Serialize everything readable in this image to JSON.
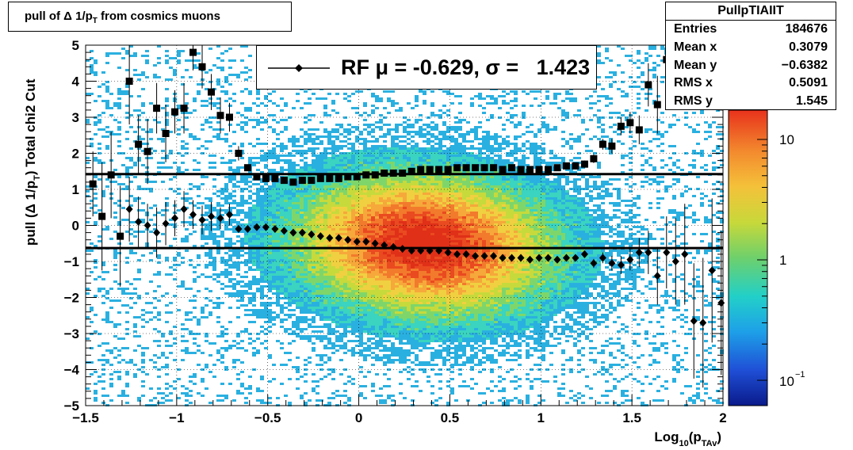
{
  "title": "pull of Δ 1/p",
  "title_sub": "T",
  "title_rest": " from cosmics muons",
  "stats": {
    "name": "PullpTIAIIT",
    "rows": [
      {
        "label": "Entries",
        "value": "184676"
      },
      {
        "label": "Mean x",
        "value": "0.3079"
      },
      {
        "label": "Mean y",
        "value": "−0.6382"
      },
      {
        "label": "RMS x",
        "value": "0.5091"
      },
      {
        "label": "RMS y",
        "value": "1.545"
      }
    ]
  },
  "legend": {
    "text": "RF μ = -0.629, σ =   1.423"
  },
  "axes": {
    "xlabel_main": "Log",
    "xlabel_sub1": "10",
    "xlabel_paren": "(p",
    "xlabel_sub2": "TAv",
    "xlabel_close": ")",
    "ylabel_main": "pull (Δ 1/p",
    "ylabel_sub": "T",
    "ylabel_rest": ")  Total chi2 Cut",
    "x_ticks": [
      "−1.5",
      "−1",
      "−0.5",
      "0",
      "0.5",
      "1",
      "1.5",
      "2"
    ],
    "y_ticks": [
      "−5",
      "−4",
      "−3",
      "−2",
      "−1",
      "0",
      "1",
      "2",
      "3",
      "4",
      "5"
    ],
    "z_ticks": [
      "10",
      "1",
      "10"
    ],
    "z_tick_exp": "−1"
  },
  "chart_data": {
    "type": "heatmap",
    "xlim": [
      -1.5,
      2
    ],
    "ylim": [
      -5,
      5
    ],
    "zscale": "log",
    "grid": true,
    "lines": [
      {
        "y": 1.423
      },
      {
        "y": -0.629
      }
    ],
    "series": [
      {
        "marker": "square",
        "x": [
          -1.46,
          -1.41,
          -1.36,
          -1.31,
          -1.26,
          -1.21,
          -1.16,
          -1.11,
          -1.06,
          -1.01,
          -0.96,
          -0.91,
          -0.86,
          -0.81,
          -0.76,
          -0.71,
          -0.66,
          -0.61,
          -0.56,
          -0.51,
          -0.46,
          -0.41,
          -0.36,
          -0.31,
          -0.26,
          -0.21,
          -0.16,
          -0.11,
          -0.06,
          -0.01,
          0.04,
          0.09,
          0.14,
          0.19,
          0.24,
          0.29,
          0.34,
          0.39,
          0.44,
          0.49,
          0.54,
          0.59,
          0.64,
          0.69,
          0.74,
          0.79,
          0.84,
          0.89,
          0.94,
          0.99,
          1.04,
          1.09,
          1.14,
          1.19,
          1.24,
          1.29,
          1.34,
          1.39,
          1.44,
          1.49,
          1.54,
          1.59,
          1.64,
          1.69,
          1.74,
          1.79,
          1.84,
          1.89,
          1.94,
          1.99
        ],
        "y": [
          1.15,
          0.25,
          1.4,
          -0.3,
          4.0,
          2.25,
          2.05,
          3.25,
          2.55,
          3.15,
          3.25,
          4.8,
          4.4,
          3.7,
          3.05,
          3.0,
          2.0,
          1.6,
          1.35,
          1.3,
          1.3,
          1.25,
          1.2,
          1.25,
          1.25,
          1.3,
          1.3,
          1.3,
          1.35,
          1.35,
          1.4,
          1.4,
          1.45,
          1.45,
          1.45,
          1.5,
          1.55,
          1.55,
          1.55,
          1.55,
          1.6,
          1.6,
          1.6,
          1.6,
          1.6,
          1.55,
          1.6,
          1.55,
          1.55,
          1.55,
          1.55,
          1.6,
          1.65,
          1.65,
          1.7,
          1.85,
          2.25,
          2.2,
          2.75,
          2.85,
          2.65,
          3.9,
          3.35,
          4.6,
          4.9,
          null,
          null,
          null,
          null,
          null
        ],
        "yerr": [
          0.9,
          1.5,
          1.2,
          1.4,
          1.2,
          0.8,
          0.9,
          0.7,
          0.8,
          0.6,
          0.7,
          0.5,
          0.6,
          0.5,
          0.5,
          0.4,
          0.2,
          0.08,
          0.05,
          0.04,
          0.04,
          0.04,
          0.04,
          0.03,
          0.03,
          0.03,
          0.03,
          0.03,
          0.03,
          0.03,
          0.03,
          0.03,
          0.03,
          0.03,
          0.03,
          0.03,
          0.03,
          0.03,
          0.03,
          0.03,
          0.03,
          0.03,
          0.03,
          0.03,
          0.03,
          0.04,
          0.04,
          0.04,
          0.04,
          0.05,
          0.05,
          0.06,
          0.07,
          0.08,
          0.1,
          0.12,
          0.15,
          0.2,
          0.25,
          0.3,
          0.4,
          0.6,
          0.8,
          1.0,
          1.2,
          0,
          0,
          0,
          0,
          0
        ]
      },
      {
        "marker": "diamond",
        "x": [
          -1.46,
          -1.41,
          -1.36,
          -1.31,
          -1.26,
          -1.21,
          -1.16,
          -1.11,
          -1.06,
          -1.01,
          -0.96,
          -0.91,
          -0.86,
          -0.81,
          -0.76,
          -0.71,
          -0.66,
          -0.61,
          -0.56,
          -0.51,
          -0.46,
          -0.41,
          -0.36,
          -0.31,
          -0.26,
          -0.21,
          -0.16,
          -0.11,
          -0.06,
          -0.01,
          0.04,
          0.09,
          0.14,
          0.19,
          0.24,
          0.29,
          0.34,
          0.39,
          0.44,
          0.49,
          0.54,
          0.59,
          0.64,
          0.69,
          0.74,
          0.79,
          0.84,
          0.89,
          0.94,
          0.99,
          1.04,
          1.09,
          1.14,
          1.19,
          1.24,
          1.29,
          1.34,
          1.39,
          1.44,
          1.49,
          1.54,
          1.59,
          1.64,
          1.69,
          1.74,
          1.79,
          1.84,
          1.89,
          1.94,
          1.99
        ],
        "y": [
          null,
          null,
          null,
          null,
          0.45,
          0.1,
          0.0,
          -0.2,
          0.05,
          0.2,
          0.45,
          0.3,
          0.15,
          0.25,
          0.2,
          0.3,
          -0.1,
          -0.1,
          -0.05,
          -0.05,
          -0.1,
          -0.15,
          -0.2,
          -0.2,
          -0.25,
          -0.3,
          -0.35,
          -0.35,
          -0.4,
          -0.45,
          -0.45,
          -0.5,
          -0.55,
          -0.6,
          -0.65,
          -0.7,
          -0.7,
          -0.7,
          -0.7,
          -0.75,
          -0.8,
          -0.8,
          -0.85,
          -0.85,
          -0.85,
          -0.9,
          -0.9,
          -0.9,
          -0.95,
          -0.9,
          -0.9,
          -0.95,
          -0.9,
          -0.9,
          -0.8,
          -1.05,
          -0.9,
          -1.05,
          -1.1,
          -0.95,
          -0.75,
          -0.75,
          -1.4,
          -0.75,
          -1.0,
          -0.8,
          -2.65,
          -2.7,
          -1.25,
          -2.15
        ],
        "yerr": [
          0,
          0,
          0,
          0,
          0.9,
          0.7,
          0.6,
          0.7,
          0.6,
          0.5,
          0.5,
          0.4,
          0.4,
          0.4,
          0.3,
          0.3,
          0.1,
          0.06,
          0.05,
          0.04,
          0.04,
          0.03,
          0.03,
          0.03,
          0.03,
          0.03,
          0.03,
          0.03,
          0.03,
          0.03,
          0.03,
          0.03,
          0.03,
          0.03,
          0.03,
          0.03,
          0.03,
          0.03,
          0.03,
          0.03,
          0.03,
          0.03,
          0.03,
          0.03,
          0.03,
          0.03,
          0.03,
          0.04,
          0.04,
          0.05,
          0.05,
          0.06,
          0.07,
          0.08,
          0.1,
          0.12,
          0.15,
          0.2,
          0.25,
          0.3,
          0.4,
          0.6,
          0.8,
          1.0,
          1.2,
          1.4,
          1.6,
          1.8,
          2.0,
          2.0
        ]
      }
    ]
  }
}
